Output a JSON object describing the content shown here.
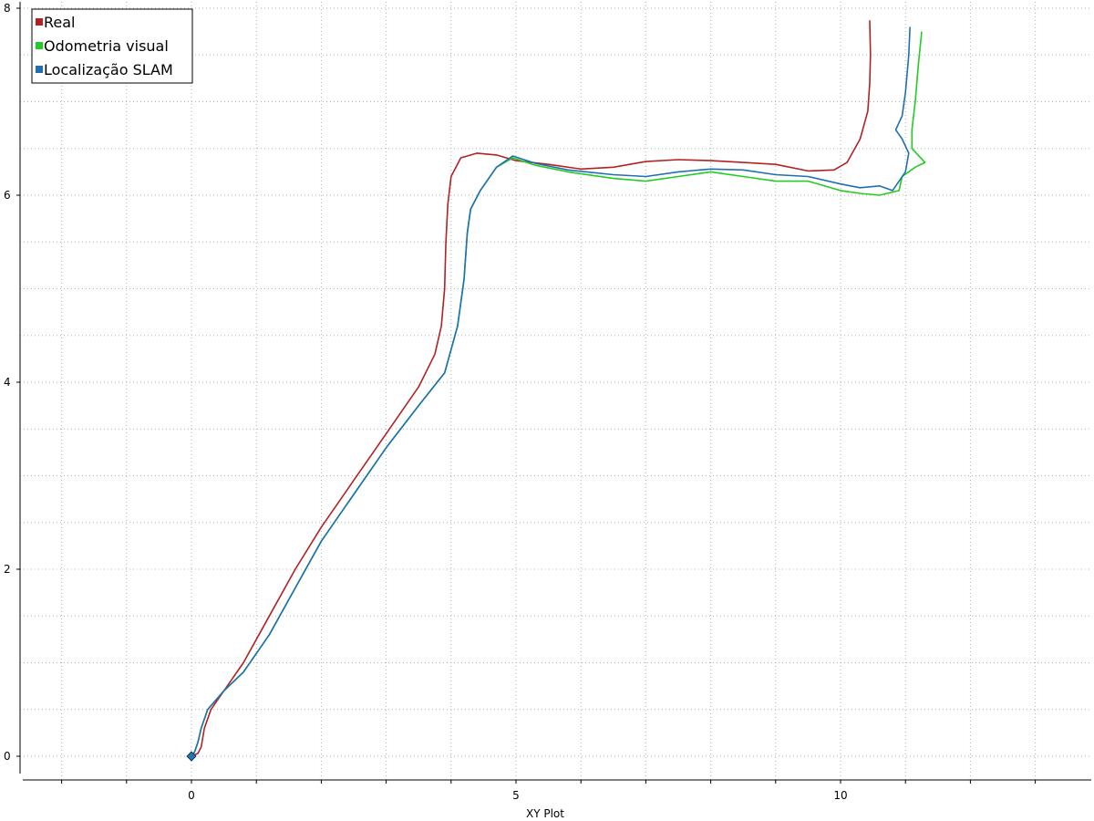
{
  "chart_data": {
    "type": "line",
    "title": "",
    "xlabel": "XY Plot",
    "ylabel": "",
    "xlim": [
      -2.6,
      13.9
    ],
    "ylim": [
      -0.2,
      8.1
    ],
    "x_ticks": [
      0,
      5,
      10
    ],
    "x_tick_labels": [
      "0",
      "5",
      "10"
    ],
    "x_minor_ticks": [
      -2,
      -1,
      1,
      2,
      3,
      4,
      6,
      7,
      8,
      9,
      11,
      12,
      13
    ],
    "y_ticks": [
      0,
      2,
      4,
      6,
      8
    ],
    "y_tick_labels": [
      "0",
      "2",
      "4",
      "6",
      "8"
    ],
    "grid": true,
    "legend_position": "top-left",
    "start_marker": {
      "x": 0,
      "y": 0,
      "color": "#1f77b4"
    },
    "series": [
      {
        "name": "Real",
        "color": "#b22222",
        "x": [
          0,
          0.1,
          0.15,
          0.2,
          0.3,
          0.5,
          0.8,
          1.2,
          1.6,
          2.0,
          2.5,
          3.0,
          3.5,
          3.75,
          3.85,
          3.9,
          3.92,
          3.95,
          4.0,
          4.15,
          4.4,
          4.7,
          5.0,
          5.5,
          6.0,
          6.5,
          7.0,
          7.5,
          8.0,
          8.5,
          9.0,
          9.5,
          9.9,
          10.1,
          10.3,
          10.42,
          10.45,
          10.46,
          10.45
        ],
        "y": [
          0,
          0.03,
          0.1,
          0.3,
          0.5,
          0.7,
          1.0,
          1.5,
          2.0,
          2.45,
          2.95,
          3.45,
          3.95,
          4.3,
          4.6,
          5.0,
          5.5,
          5.9,
          6.2,
          6.4,
          6.45,
          6.43,
          6.37,
          6.33,
          6.28,
          6.3,
          6.36,
          6.38,
          6.37,
          6.35,
          6.33,
          6.26,
          6.27,
          6.35,
          6.6,
          6.9,
          7.2,
          7.5,
          7.87
        ]
      },
      {
        "name": "Odometria visual",
        "color": "#22cc22",
        "x": [
          0,
          0.05,
          0.1,
          0.15,
          0.25,
          0.5,
          0.8,
          1.2,
          1.6,
          2.0,
          2.5,
          3.0,
          3.5,
          3.9,
          4.1,
          4.2,
          4.25,
          4.3,
          4.45,
          4.7,
          4.95,
          5.3,
          5.8,
          6.5,
          7.0,
          7.5,
          8.0,
          8.5,
          9.0,
          9.5,
          10.0,
          10.3,
          10.6,
          10.9,
          10.95,
          11.15,
          11.3,
          11.1,
          11.1,
          11.15,
          11.2,
          11.25
        ],
        "y": [
          0,
          0.05,
          0.15,
          0.3,
          0.5,
          0.7,
          0.9,
          1.3,
          1.8,
          2.3,
          2.8,
          3.3,
          3.75,
          4.1,
          4.6,
          5.1,
          5.6,
          5.85,
          6.05,
          6.3,
          6.4,
          6.32,
          6.25,
          6.18,
          6.15,
          6.2,
          6.25,
          6.2,
          6.15,
          6.15,
          6.05,
          6.02,
          6.0,
          6.05,
          6.2,
          6.3,
          6.35,
          6.5,
          6.7,
          7.0,
          7.4,
          7.75
        ]
      },
      {
        "name": "Localização SLAM",
        "color": "#1f6fb4",
        "x": [
          0,
          0.05,
          0.1,
          0.15,
          0.25,
          0.5,
          0.8,
          1.2,
          1.6,
          2.0,
          2.5,
          3.0,
          3.5,
          3.9,
          4.1,
          4.2,
          4.25,
          4.3,
          4.45,
          4.7,
          4.95,
          5.3,
          5.8,
          6.5,
          7.0,
          7.5,
          8.0,
          8.5,
          9.0,
          9.5,
          10.0,
          10.3,
          10.6,
          10.8,
          11.0,
          11.05,
          10.95,
          10.85,
          10.95,
          11.0,
          11.05,
          11.07
        ],
        "y": [
          0,
          0.05,
          0.15,
          0.3,
          0.5,
          0.7,
          0.9,
          1.3,
          1.8,
          2.3,
          2.8,
          3.3,
          3.75,
          4.1,
          4.6,
          5.1,
          5.6,
          5.85,
          6.05,
          6.3,
          6.42,
          6.34,
          6.27,
          6.22,
          6.2,
          6.25,
          6.28,
          6.27,
          6.22,
          6.2,
          6.12,
          6.08,
          6.1,
          6.05,
          6.25,
          6.45,
          6.6,
          6.7,
          6.85,
          7.1,
          7.5,
          7.8
        ]
      }
    ]
  }
}
